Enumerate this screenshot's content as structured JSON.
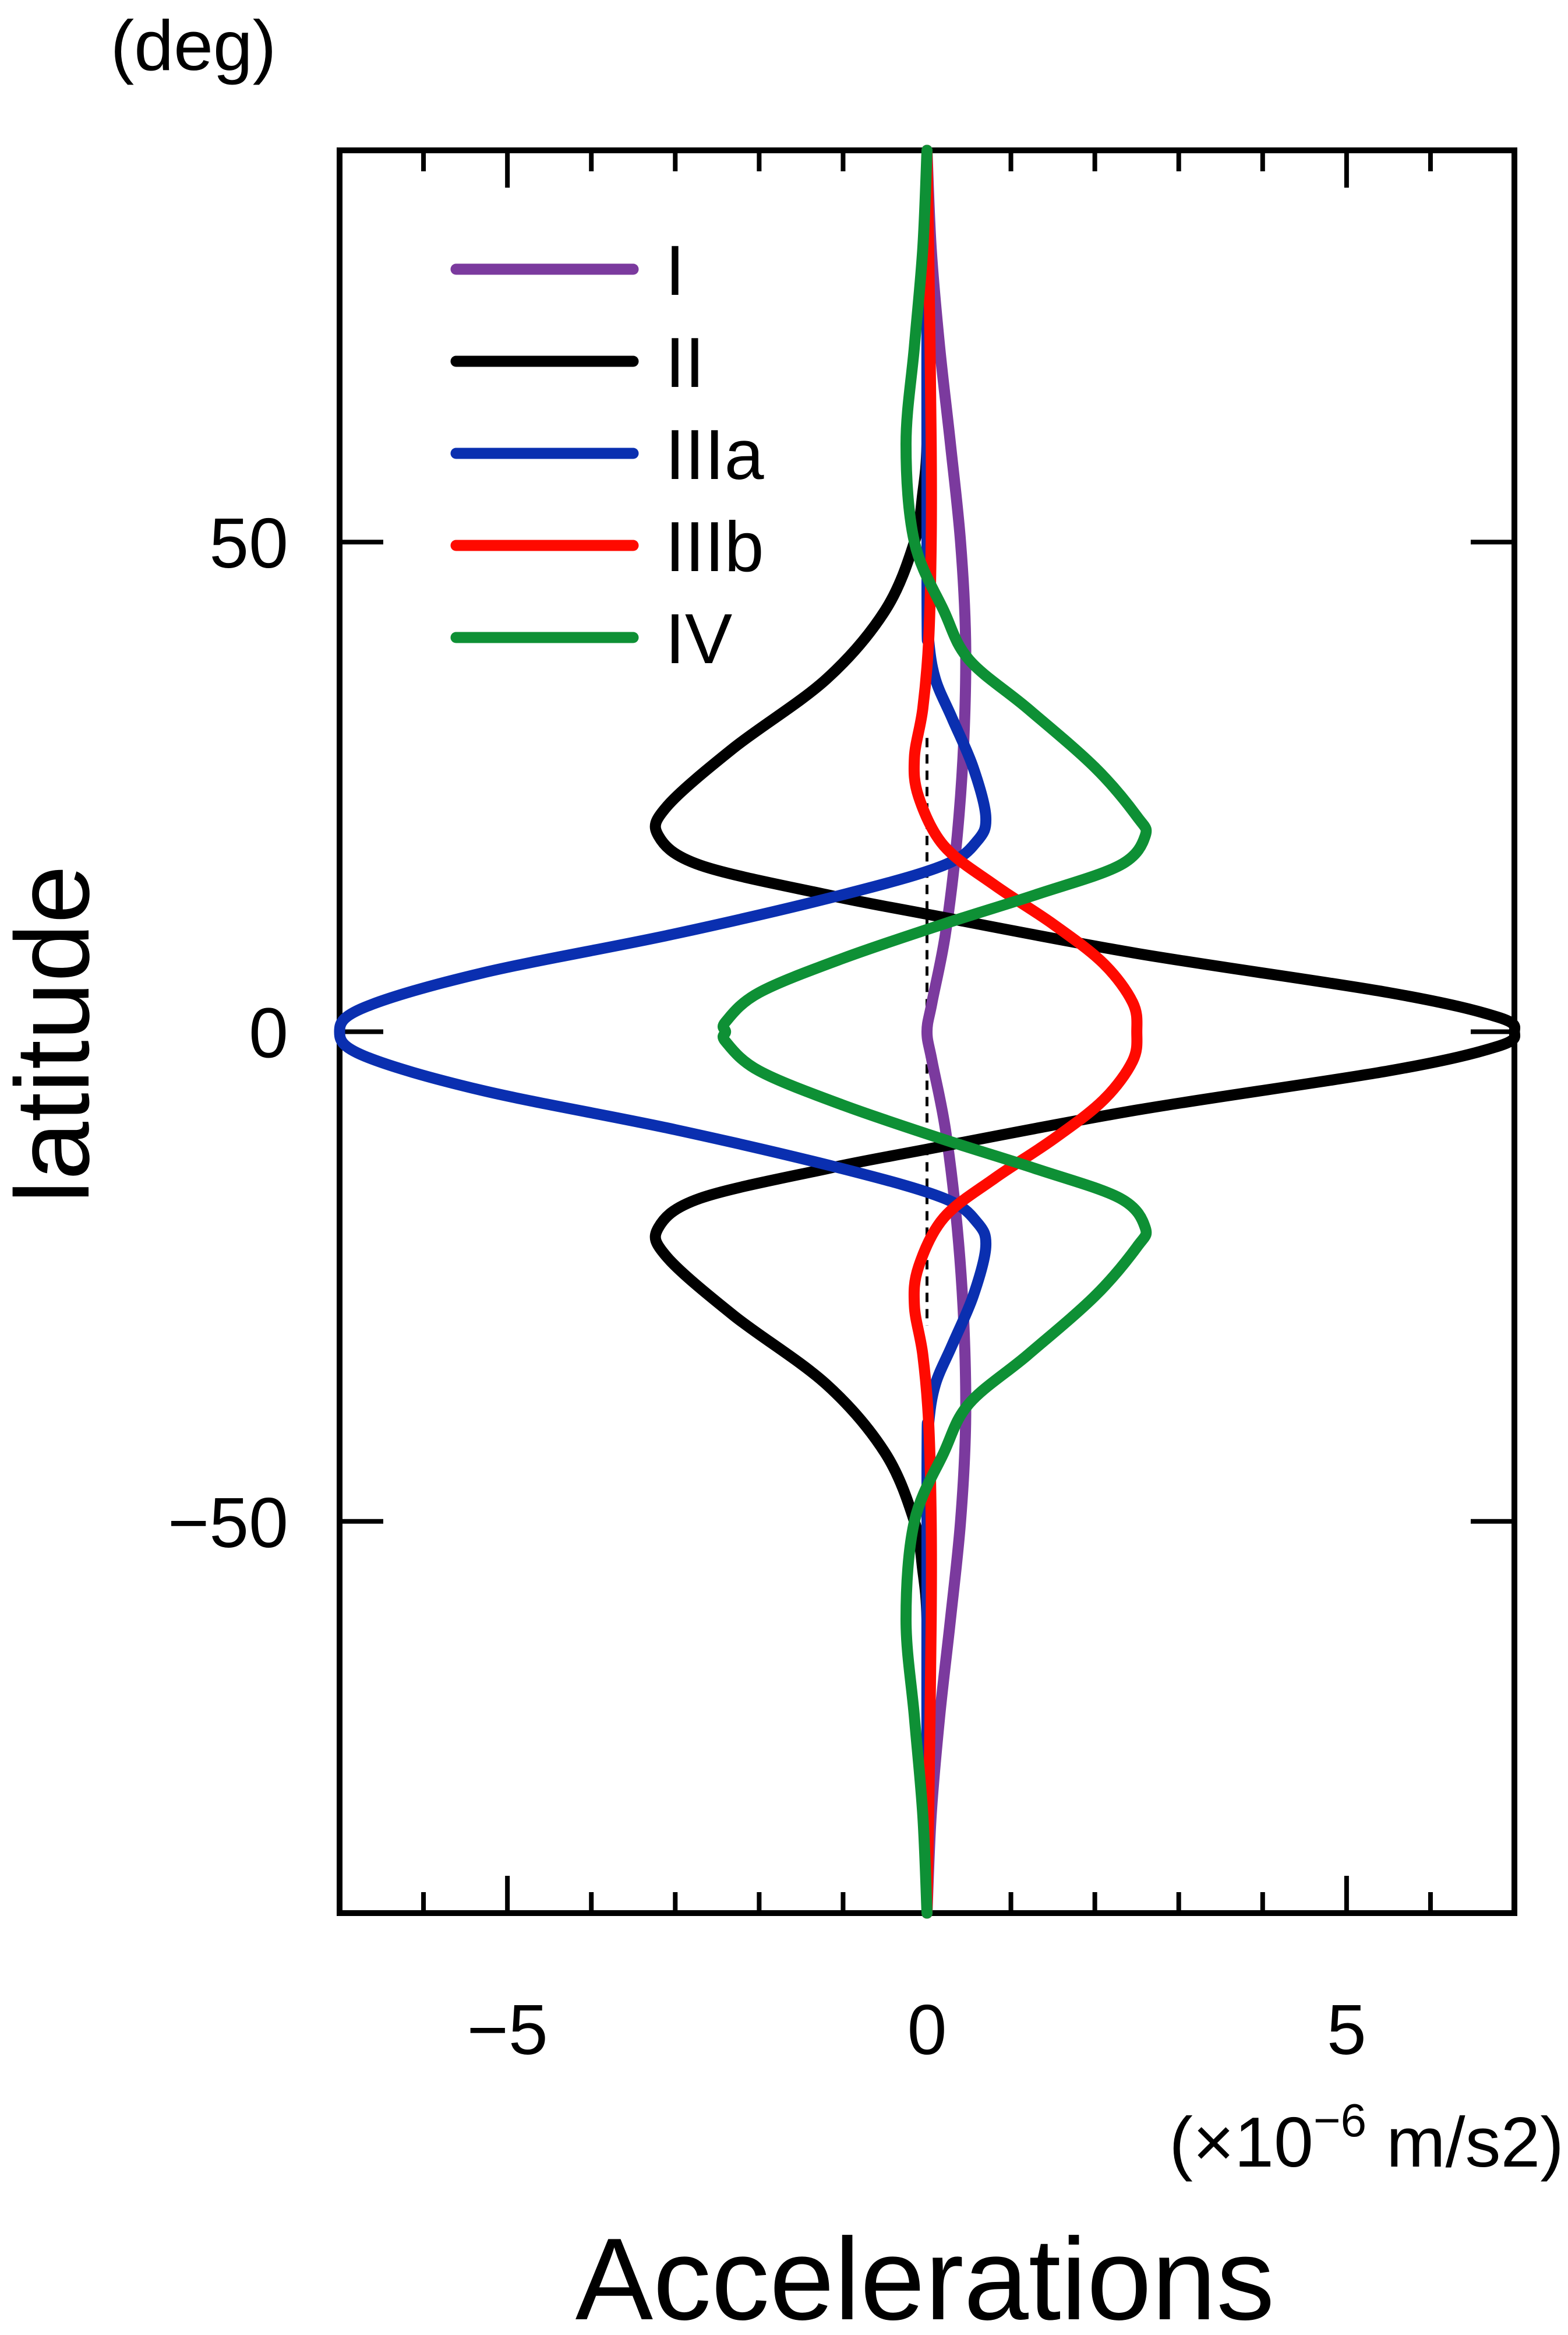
{
  "chart_data": {
    "type": "line",
    "orientation": "y-independent",
    "xlabel": "Accelerations",
    "x_unit": "(×10⁻⁶ m/s2)",
    "x_unit_parts": {
      "prefix": "(×10",
      "exponent": "−6",
      "suffix": " m/s2)"
    },
    "ylabel": "latitude",
    "y_unit": "(deg)",
    "xlim": [
      -7,
      7
    ],
    "ylim": [
      -90,
      90
    ],
    "x_ticks": [
      {
        "value": -5,
        "label": "−5"
      },
      {
        "value": 0,
        "label": "0"
      },
      {
        "value": 5,
        "label": "5"
      }
    ],
    "y_ticks": [
      {
        "value": 50,
        "label": "50"
      },
      {
        "value": 0,
        "label": "0"
      },
      {
        "value": -50,
        "label": "−50"
      }
    ],
    "x_minor_step": 1,
    "y_minor_step": 10,
    "grid": false,
    "legend_position": "top-left",
    "zero_line": "dashed vertical at x = 0",
    "series": [
      {
        "name": "I",
        "color": "#7b3a9e",
        "points": [
          [
            0,
            90
          ],
          [
            0.05,
            80
          ],
          [
            0.15,
            70
          ],
          [
            0.28,
            60
          ],
          [
            0.4,
            50
          ],
          [
            0.46,
            40
          ],
          [
            0.44,
            30
          ],
          [
            0.36,
            20
          ],
          [
            0.22,
            10
          ],
          [
            0.06,
            3
          ],
          [
            0,
            0
          ],
          [
            0.06,
            -3
          ],
          [
            0.22,
            -10
          ],
          [
            0.36,
            -20
          ],
          [
            0.44,
            -30
          ],
          [
            0.46,
            -40
          ],
          [
            0.4,
            -50
          ],
          [
            0.28,
            -60
          ],
          [
            0.15,
            -70
          ],
          [
            0.05,
            -80
          ],
          [
            0,
            -90
          ]
        ]
      },
      {
        "name": "II",
        "color": "#000000",
        "points": [
          [
            0,
            90
          ],
          [
            0,
            70
          ],
          [
            0,
            60
          ],
          [
            -0.05,
            55
          ],
          [
            -0.15,
            50
          ],
          [
            -0.5,
            43
          ],
          [
            -1.2,
            36
          ],
          [
            -2.3,
            29
          ],
          [
            -3.1,
            23
          ],
          [
            -3.2,
            20
          ],
          [
            -2.7,
            17
          ],
          [
            -1.2,
            14
          ],
          [
            0,
            12
          ],
          [
            2.5,
            8
          ],
          [
            5.5,
            4
          ],
          [
            6.8,
            1.5
          ],
          [
            7,
            0
          ],
          [
            6.8,
            -1.5
          ],
          [
            5.5,
            -4
          ],
          [
            2.5,
            -8
          ],
          [
            0,
            -12
          ],
          [
            -1.2,
            -14
          ],
          [
            -2.7,
            -17
          ],
          [
            -3.2,
            -20
          ],
          [
            -3.1,
            -23
          ],
          [
            -2.3,
            -29
          ],
          [
            -1.2,
            -36
          ],
          [
            -0.5,
            -43
          ],
          [
            -0.15,
            -50
          ],
          [
            -0.05,
            -55
          ],
          [
            0,
            -60
          ],
          [
            0,
            -70
          ],
          [
            0,
            -90
          ]
        ]
      },
      {
        "name": "IIIa",
        "color": "#0a2fb0",
        "points": [
          [
            0,
            90
          ],
          [
            0,
            45
          ],
          [
            0.02,
            40
          ],
          [
            0.1,
            36
          ],
          [
            0.3,
            32
          ],
          [
            0.55,
            27
          ],
          [
            0.7,
            22
          ],
          [
            0.6,
            19.5
          ],
          [
            0.2,
            17
          ],
          [
            -1,
            14
          ],
          [
            -3,
            10
          ],
          [
            -5.3,
            6
          ],
          [
            -6.7,
            2.5
          ],
          [
            -7,
            0
          ],
          [
            -6.7,
            -2.5
          ],
          [
            -5.3,
            -6
          ],
          [
            -3,
            -10
          ],
          [
            -1,
            -14
          ],
          [
            0.2,
            -17
          ],
          [
            0.6,
            -19.5
          ],
          [
            0.7,
            -22
          ],
          [
            0.55,
            -27
          ],
          [
            0.3,
            -32
          ],
          [
            0.1,
            -36
          ],
          [
            0.02,
            -40
          ],
          [
            0,
            -45
          ],
          [
            0,
            -90
          ]
        ]
      },
      {
        "name": "IIIb",
        "color": "#ff0a00",
        "points": [
          [
            0,
            90
          ],
          [
            0.02,
            80
          ],
          [
            0.05,
            60
          ],
          [
            0.05,
            50
          ],
          [
            0.02,
            40
          ],
          [
            -0.05,
            33
          ],
          [
            -0.15,
            28
          ],
          [
            -0.1,
            24
          ],
          [
            0.2,
            19
          ],
          [
            0.8,
            15
          ],
          [
            1.5,
            11
          ],
          [
            2.1,
            7
          ],
          [
            2.45,
            3
          ],
          [
            2.5,
            0
          ],
          [
            2.45,
            -3
          ],
          [
            2.1,
            -7
          ],
          [
            1.5,
            -11
          ],
          [
            0.8,
            -15
          ],
          [
            0.2,
            -19
          ],
          [
            -0.1,
            -24
          ],
          [
            -0.15,
            -28
          ],
          [
            -0.05,
            -33
          ],
          [
            0.02,
            -40
          ],
          [
            0.05,
            -50
          ],
          [
            0.05,
            -60
          ],
          [
            0.02,
            -80
          ],
          [
            0,
            -90
          ]
        ]
      },
      {
        "name": "IV",
        "color": "#0e9035",
        "points": [
          [
            0,
            90
          ],
          [
            -0.05,
            80
          ],
          [
            -0.15,
            70
          ],
          [
            -0.25,
            60
          ],
          [
            -0.15,
            50
          ],
          [
            0.2,
            43
          ],
          [
            0.5,
            38
          ],
          [
            1.2,
            33
          ],
          [
            2,
            27
          ],
          [
            2.5,
            22
          ],
          [
            2.6,
            20
          ],
          [
            2.3,
            17
          ],
          [
            1.3,
            14
          ],
          [
            0.2,
            11
          ],
          [
            -1,
            7.5
          ],
          [
            -2,
            4
          ],
          [
            -2.4,
            1
          ],
          [
            -2.4,
            0
          ],
          [
            -2.4,
            -1
          ],
          [
            -2,
            -4
          ],
          [
            -1,
            -7.5
          ],
          [
            0.2,
            -11
          ],
          [
            1.3,
            -14
          ],
          [
            2.3,
            -17
          ],
          [
            2.6,
            -20
          ],
          [
            2.5,
            -22
          ],
          [
            2,
            -27
          ],
          [
            1.2,
            -33
          ],
          [
            0.5,
            -38
          ],
          [
            0.2,
            -43
          ],
          [
            -0.15,
            -50
          ],
          [
            -0.25,
            -60
          ],
          [
            -0.15,
            -70
          ],
          [
            -0.05,
            -80
          ],
          [
            0,
            -90
          ]
        ]
      }
    ]
  }
}
